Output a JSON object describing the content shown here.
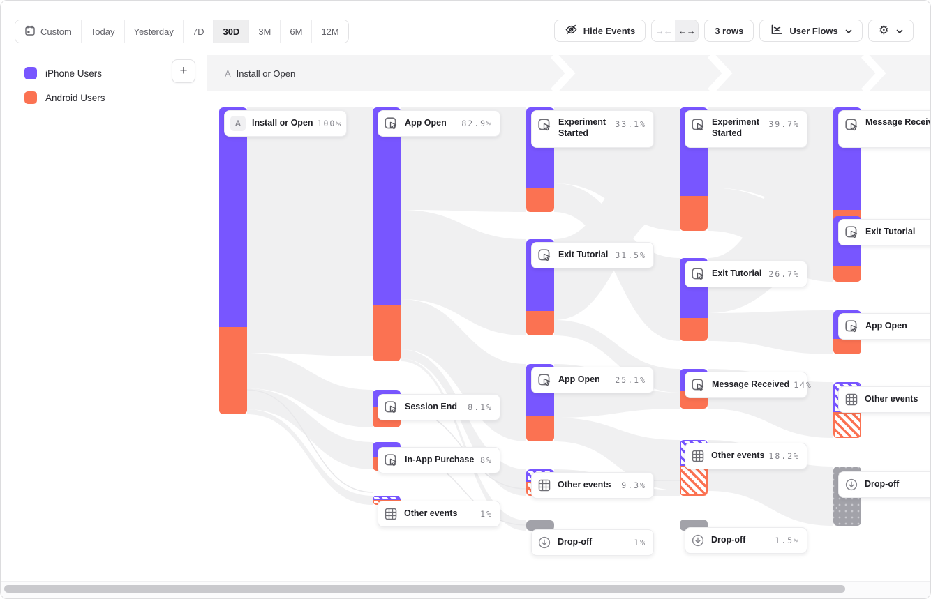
{
  "toolbar": {
    "date_ranges": [
      {
        "label": "Custom",
        "icon": "calendar-icon",
        "selected": false
      },
      {
        "label": "Today",
        "selected": false
      },
      {
        "label": "Yesterday",
        "selected": false
      },
      {
        "label": "7D",
        "selected": false
      },
      {
        "label": "30D",
        "selected": true
      },
      {
        "label": "3M",
        "selected": false
      },
      {
        "label": "6M",
        "selected": false
      },
      {
        "label": "12M",
        "selected": false
      }
    ],
    "hide_events_label": "Hide Events",
    "rows_label": "3 rows",
    "view_selector_label": "User Flows",
    "icons": {
      "hide_events": "eye-off-icon",
      "collapse": "arrows-inward-icon",
      "expand": "arrows-outward-icon",
      "view": "flow-chart-icon",
      "settings": "gear-icon",
      "gear_glyph": "⚙",
      "collapse_glyph": "→←",
      "expand_glyph": "←→"
    }
  },
  "legend": {
    "items": [
      {
        "label": "iPhone Users",
        "color": "#7856ff"
      },
      {
        "label": "Android Users",
        "color": "#fb7252"
      }
    ]
  },
  "path_header": {
    "add_label": "+",
    "badge": "A",
    "title": "Install or Open"
  },
  "chart_data": {
    "type": "sankey-user-flow",
    "title": "User Flows",
    "date_range": "30D",
    "segments": [
      "iPhone Users",
      "Android Users"
    ],
    "colors": {
      "iphone": "#7856ff",
      "android": "#fb7252",
      "dropoff": "#a2a2a9"
    },
    "columns": [
      {
        "step": 1,
        "nodes": [
          {
            "label": "Install or Open",
            "percent": "100%",
            "value": 100,
            "kind": "first",
            "badge": "A"
          }
        ]
      },
      {
        "step": 2,
        "nodes": [
          {
            "label": "App Open",
            "percent": "82.9%",
            "value": 82.9,
            "kind": "event"
          },
          {
            "label": "Session End",
            "percent": "8.1%",
            "value": 8.1,
            "kind": "event"
          },
          {
            "label": "In-App Purchase",
            "percent": "8%",
            "value": 8,
            "kind": "event"
          },
          {
            "label": "Other events",
            "percent": "1%",
            "value": 1,
            "kind": "other"
          }
        ]
      },
      {
        "step": 3,
        "nodes": [
          {
            "label": "Experiment Started",
            "percent": "33.1%",
            "value": 33.1,
            "kind": "event"
          },
          {
            "label": "Exit Tutorial",
            "percent": "31.5%",
            "value": 31.5,
            "kind": "event"
          },
          {
            "label": "App Open",
            "percent": "25.1%",
            "value": 25.1,
            "kind": "event"
          },
          {
            "label": "Other events",
            "percent": "9.3%",
            "value": 9.3,
            "kind": "other"
          },
          {
            "label": "Drop-off",
            "percent": "1%",
            "value": 1,
            "kind": "dropoff"
          }
        ]
      },
      {
        "step": 4,
        "nodes": [
          {
            "label": "Experiment Started",
            "percent": "39.7%",
            "value": 39.7,
            "kind": "event"
          },
          {
            "label": "Exit Tutorial",
            "percent": "26.7%",
            "value": 26.7,
            "kind": "event"
          },
          {
            "label": "Message Received",
            "percent": "14%",
            "value": 14,
            "kind": "event"
          },
          {
            "label": "Other events",
            "percent": "18.2%",
            "value": 18.2,
            "kind": "other"
          },
          {
            "label": "Drop-off",
            "percent": "1.5%",
            "value": 1.5,
            "kind": "dropoff"
          }
        ]
      },
      {
        "step": 5,
        "nodes": [
          {
            "label": "Message Received",
            "percent": "",
            "kind": "event"
          },
          {
            "label": "Exit Tutorial",
            "percent": "",
            "kind": "event"
          },
          {
            "label": "App Open",
            "percent": "",
            "kind": "event"
          },
          {
            "label": "Other events",
            "percent": "",
            "kind": "other"
          },
          {
            "label": "Drop-off",
            "percent": "",
            "kind": "dropoff"
          }
        ]
      }
    ]
  }
}
